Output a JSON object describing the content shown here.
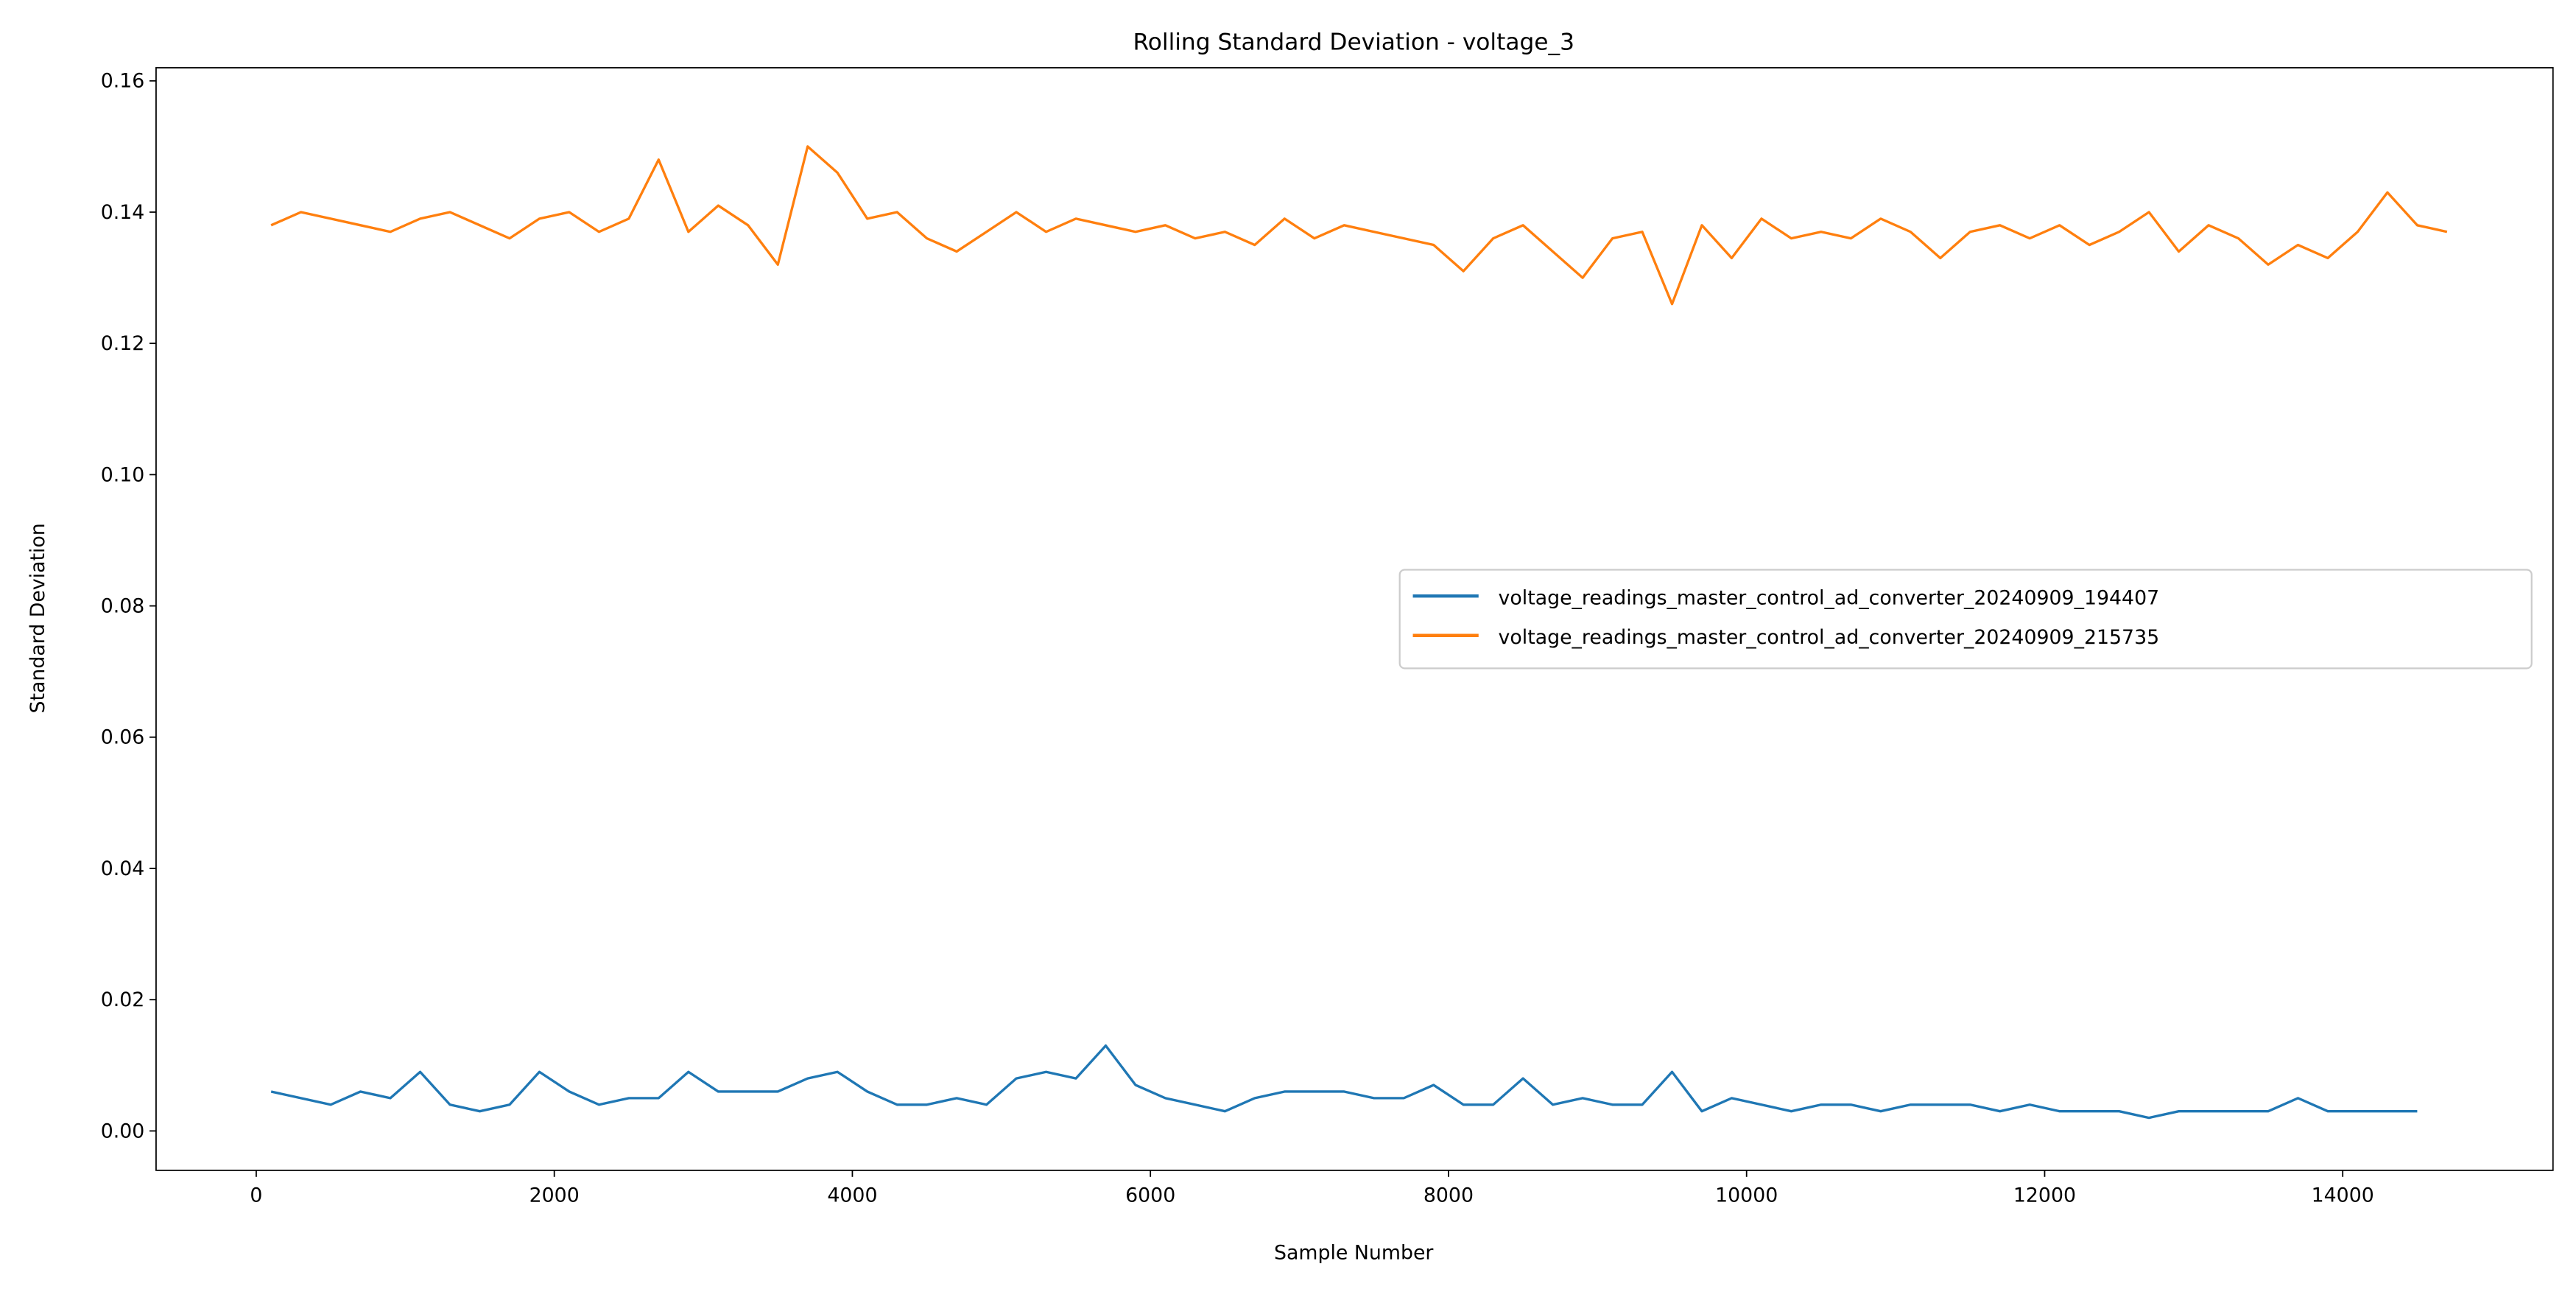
{
  "chart_data": {
    "type": "line",
    "title": "Rolling Standard Deviation - voltage_3",
    "xlabel": "Sample Number",
    "ylabel": "Standard Deviation",
    "xlim": [
      -672,
      15411
    ],
    "ylim": [
      -0.006,
      0.162
    ],
    "xticks": [
      0,
      2000,
      4000,
      6000,
      8000,
      10000,
      12000,
      14000
    ],
    "yticks": [
      {
        "value": 0,
        "label": "0.00"
      },
      {
        "value": 0.02,
        "label": "0.02"
      },
      {
        "value": 0.04,
        "label": "0.04"
      },
      {
        "value": 0.06,
        "label": "0.06"
      },
      {
        "value": 0.08,
        "label": "0.08"
      },
      {
        "value": 0.1,
        "label": "0.10"
      },
      {
        "value": 0.12,
        "label": "0.12"
      },
      {
        "value": 0.14,
        "label": "0.14"
      },
      {
        "value": 0.16,
        "label": "0.16"
      }
    ],
    "legend": "center right",
    "series": [
      {
        "name": "voltage_readings_master_control_ad_converter_20240909_194407",
        "color": "#1f77b4",
        "x": [
          100,
          300,
          500,
          700,
          900,
          1100,
          1300,
          1500,
          1700,
          1900,
          2100,
          2300,
          2500,
          2700,
          2900,
          3100,
          3300,
          3500,
          3700,
          3900,
          4100,
          4300,
          4500,
          4700,
          4900,
          5100,
          5300,
          5500,
          5700,
          5900,
          6100,
          6300,
          6500,
          6700,
          6900,
          7100,
          7300,
          7500,
          7700,
          7900,
          8100,
          8300,
          8500,
          8700,
          8900,
          9100,
          9300,
          9500,
          9700,
          9900,
          10100,
          10300,
          10500,
          10700,
          10900,
          11100,
          11300,
          11500,
          11700,
          11900,
          12100,
          12300,
          12500,
          12700,
          12900,
          13100,
          13300,
          13500,
          13700,
          13900,
          14100,
          14300,
          14500
        ],
        "values": [
          0.006,
          0.005,
          0.004,
          0.006,
          0.005,
          0.009,
          0.004,
          0.003,
          0.004,
          0.009,
          0.006,
          0.004,
          0.005,
          0.005,
          0.009,
          0.006,
          0.006,
          0.006,
          0.008,
          0.009,
          0.006,
          0.004,
          0.004,
          0.005,
          0.004,
          0.008,
          0.009,
          0.008,
          0.013,
          0.007,
          0.005,
          0.004,
          0.003,
          0.005,
          0.006,
          0.006,
          0.006,
          0.005,
          0.005,
          0.007,
          0.004,
          0.004,
          0.008,
          0.004,
          0.005,
          0.004,
          0.004,
          0.009,
          0.003,
          0.005,
          0.004,
          0.003,
          0.004,
          0.004,
          0.003,
          0.004,
          0.004,
          0.004,
          0.003,
          0.004,
          0.003,
          0.003,
          0.003,
          0.002,
          0.003,
          0.003,
          0.003,
          0.003,
          0.005,
          0.003,
          0.003,
          0.003,
          0.003
        ]
      },
      {
        "name": "voltage_readings_master_control_ad_converter_20240909_215735",
        "color": "#ff7f0e",
        "x": [
          100,
          300,
          500,
          700,
          900,
          1100,
          1300,
          1500,
          1700,
          1900,
          2100,
          2300,
          2500,
          2700,
          2900,
          3100,
          3300,
          3500,
          3700,
          3900,
          4100,
          4300,
          4500,
          4700,
          4900,
          5100,
          5300,
          5500,
          5700,
          5900,
          6100,
          6300,
          6500,
          6700,
          6900,
          7100,
          7300,
          7500,
          7700,
          7900,
          8100,
          8300,
          8500,
          8700,
          8900,
          9100,
          9300,
          9500,
          9700,
          9900,
          10100,
          10300,
          10500,
          10700,
          10900,
          11100,
          11300,
          11500,
          11700,
          11900,
          12100,
          12300,
          12500,
          12700,
          12900,
          13100,
          13300,
          13500,
          13700,
          13900,
          14100,
          14300,
          14500,
          14700
        ],
        "values": [
          0.138,
          0.14,
          0.139,
          0.138,
          0.137,
          0.139,
          0.14,
          0.138,
          0.136,
          0.139,
          0.14,
          0.137,
          0.139,
          0.148,
          0.137,
          0.141,
          0.138,
          0.132,
          0.15,
          0.146,
          0.139,
          0.14,
          0.136,
          0.134,
          0.137,
          0.14,
          0.137,
          0.139,
          0.138,
          0.137,
          0.138,
          0.136,
          0.137,
          0.135,
          0.139,
          0.136,
          0.138,
          0.137,
          0.136,
          0.135,
          0.131,
          0.136,
          0.138,
          0.134,
          0.13,
          0.136,
          0.137,
          0.126,
          0.138,
          0.133,
          0.139,
          0.136,
          0.137,
          0.136,
          0.139,
          0.137,
          0.133,
          0.137,
          0.138,
          0.136,
          0.138,
          0.135,
          0.137,
          0.14,
          0.134,
          0.138,
          0.136,
          0.132,
          0.135,
          0.133,
          0.137,
          0.143,
          0.138,
          0.137
        ]
      }
    ]
  }
}
